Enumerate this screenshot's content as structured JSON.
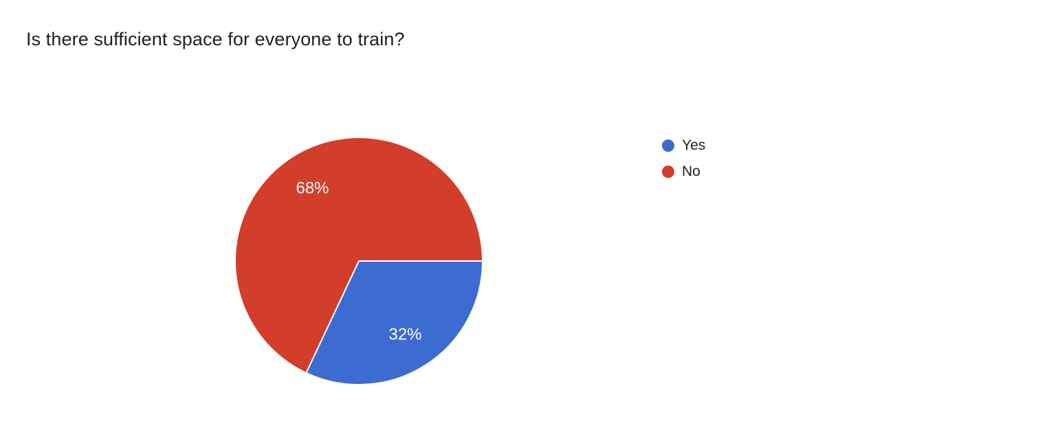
{
  "page": {
    "background_color": "#ffffff"
  },
  "chart_data": {
    "type": "pie",
    "title": "Is there sufficient space for everyone to train?",
    "labels": [
      "Yes",
      "No"
    ],
    "values": [
      32,
      68
    ],
    "value_labels": [
      "32%",
      "68%"
    ],
    "colors": [
      "#3c6bd2",
      "#d23e2a"
    ],
    "slice_label_color": "#ffffff",
    "slice_border_color": "#ffffff",
    "legend_position": "right",
    "start_angle_deg": 0,
    "direction": "clockwise",
    "total": 100
  }
}
